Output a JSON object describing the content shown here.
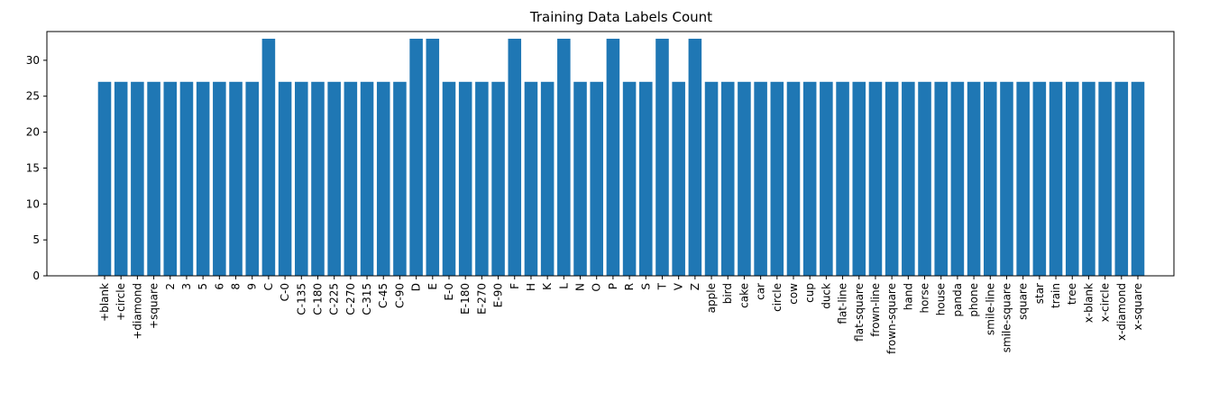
{
  "chart_data": {
    "type": "bar",
    "title": "Training Data Labels Count",
    "xlabel": "",
    "ylabel": "",
    "ylim": [
      0,
      34
    ],
    "yticks": [
      0,
      5,
      10,
      15,
      20,
      25,
      30
    ],
    "bar_color": "#1f77b4",
    "grid": false,
    "categories": [
      "+blank",
      "+circle",
      "+diamond",
      "+square",
      "2",
      "3",
      "5",
      "6",
      "8",
      "9",
      "C",
      "C-0",
      "C-135",
      "C-180",
      "C-225",
      "C-270",
      "C-315",
      "C-45",
      "C-90",
      "D",
      "E",
      "E-0",
      "E-180",
      "E-270",
      "E-90",
      "F",
      "H",
      "K",
      "L",
      "N",
      "O",
      "P",
      "R",
      "S",
      "T",
      "V",
      "Z",
      "apple",
      "bird",
      "cake",
      "car",
      "circle",
      "cow",
      "cup",
      "duck",
      "flat-line",
      "flat-square",
      "frown-line",
      "frown-square",
      "hand",
      "horse",
      "house",
      "panda",
      "phone",
      "smile-line",
      "smile-square",
      "square",
      "star",
      "train",
      "tree",
      "x-blank",
      "x-circle",
      "x-diamond",
      "x-square"
    ],
    "values": [
      27,
      27,
      27,
      27,
      27,
      27,
      27,
      27,
      27,
      27,
      33,
      27,
      27,
      27,
      27,
      27,
      27,
      27,
      27,
      33,
      33,
      27,
      27,
      27,
      27,
      33,
      27,
      27,
      33,
      27,
      27,
      33,
      27,
      27,
      33,
      27,
      33,
      27,
      27,
      27,
      27,
      27,
      27,
      27,
      27,
      27,
      27,
      27,
      27,
      27,
      27,
      27,
      27,
      27,
      27,
      27,
      27,
      27,
      27,
      27,
      27,
      27,
      27,
      27
    ]
  }
}
